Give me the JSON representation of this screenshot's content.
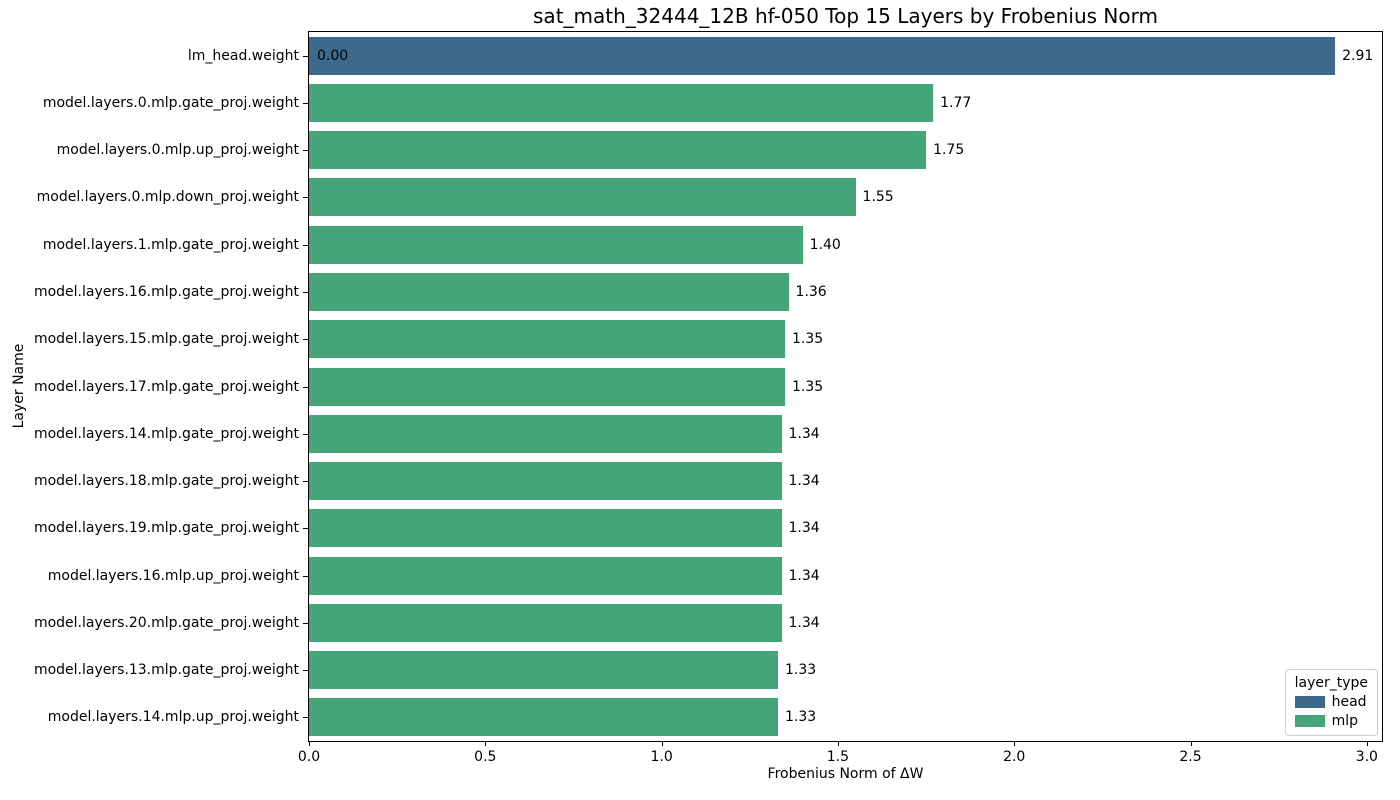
{
  "chart_data": {
    "type": "bar",
    "orientation": "horizontal",
    "title": "sat_math_32444_12B hf-050 Top 15 Layers by Frobenius Norm",
    "xlabel": "Frobenius Norm of ΔW",
    "ylabel": "Layer Name",
    "xlim": [
      0,
      3.043
    ],
    "grid": false,
    "xticks": [
      {
        "label": "0.0",
        "value": 0.0
      },
      {
        "label": "0.5",
        "value": 0.5
      },
      {
        "label": "1.0",
        "value": 1.0
      },
      {
        "label": "1.5",
        "value": 1.5
      },
      {
        "label": "2.0",
        "value": 2.0
      },
      {
        "label": "2.5",
        "value": 2.5
      },
      {
        "label": "3.0",
        "value": 3.0
      }
    ],
    "colors": {
      "head": "#3d6a8c",
      "mlp": "#46a578"
    },
    "legend": {
      "title": "layer_type",
      "position": "lower right",
      "entries": [
        {
          "label": "head",
          "color": "#3d6a8c"
        },
        {
          "label": "mlp",
          "color": "#46a578"
        }
      ]
    },
    "bars": [
      {
        "label": "lm_head.weight",
        "value": 2.91,
        "value_label": "2.91",
        "layer_type": "head",
        "inner_label": "0.00"
      },
      {
        "label": "model.layers.0.mlp.gate_proj.weight",
        "value": 1.77,
        "value_label": "1.77",
        "layer_type": "mlp"
      },
      {
        "label": "model.layers.0.mlp.up_proj.weight",
        "value": 1.75,
        "value_label": "1.75",
        "layer_type": "mlp"
      },
      {
        "label": "model.layers.0.mlp.down_proj.weight",
        "value": 1.55,
        "value_label": "1.55",
        "layer_type": "mlp"
      },
      {
        "label": "model.layers.1.mlp.gate_proj.weight",
        "value": 1.4,
        "value_label": "1.40",
        "layer_type": "mlp"
      },
      {
        "label": "model.layers.16.mlp.gate_proj.weight",
        "value": 1.36,
        "value_label": "1.36",
        "layer_type": "mlp"
      },
      {
        "label": "model.layers.15.mlp.gate_proj.weight",
        "value": 1.35,
        "value_label": "1.35",
        "layer_type": "mlp"
      },
      {
        "label": "model.layers.17.mlp.gate_proj.weight",
        "value": 1.35,
        "value_label": "1.35",
        "layer_type": "mlp"
      },
      {
        "label": "model.layers.14.mlp.gate_proj.weight",
        "value": 1.34,
        "value_label": "1.34",
        "layer_type": "mlp"
      },
      {
        "label": "model.layers.18.mlp.gate_proj.weight",
        "value": 1.34,
        "value_label": "1.34",
        "layer_type": "mlp"
      },
      {
        "label": "model.layers.19.mlp.gate_proj.weight",
        "value": 1.34,
        "value_label": "1.34",
        "layer_type": "mlp"
      },
      {
        "label": "model.layers.16.mlp.up_proj.weight",
        "value": 1.34,
        "value_label": "1.34",
        "layer_type": "mlp"
      },
      {
        "label": "model.layers.20.mlp.gate_proj.weight",
        "value": 1.34,
        "value_label": "1.34",
        "layer_type": "mlp"
      },
      {
        "label": "model.layers.13.mlp.gate_proj.weight",
        "value": 1.33,
        "value_label": "1.33",
        "layer_type": "mlp"
      },
      {
        "label": "model.layers.14.mlp.up_proj.weight",
        "value": 1.33,
        "value_label": "1.33",
        "layer_type": "mlp"
      }
    ]
  }
}
